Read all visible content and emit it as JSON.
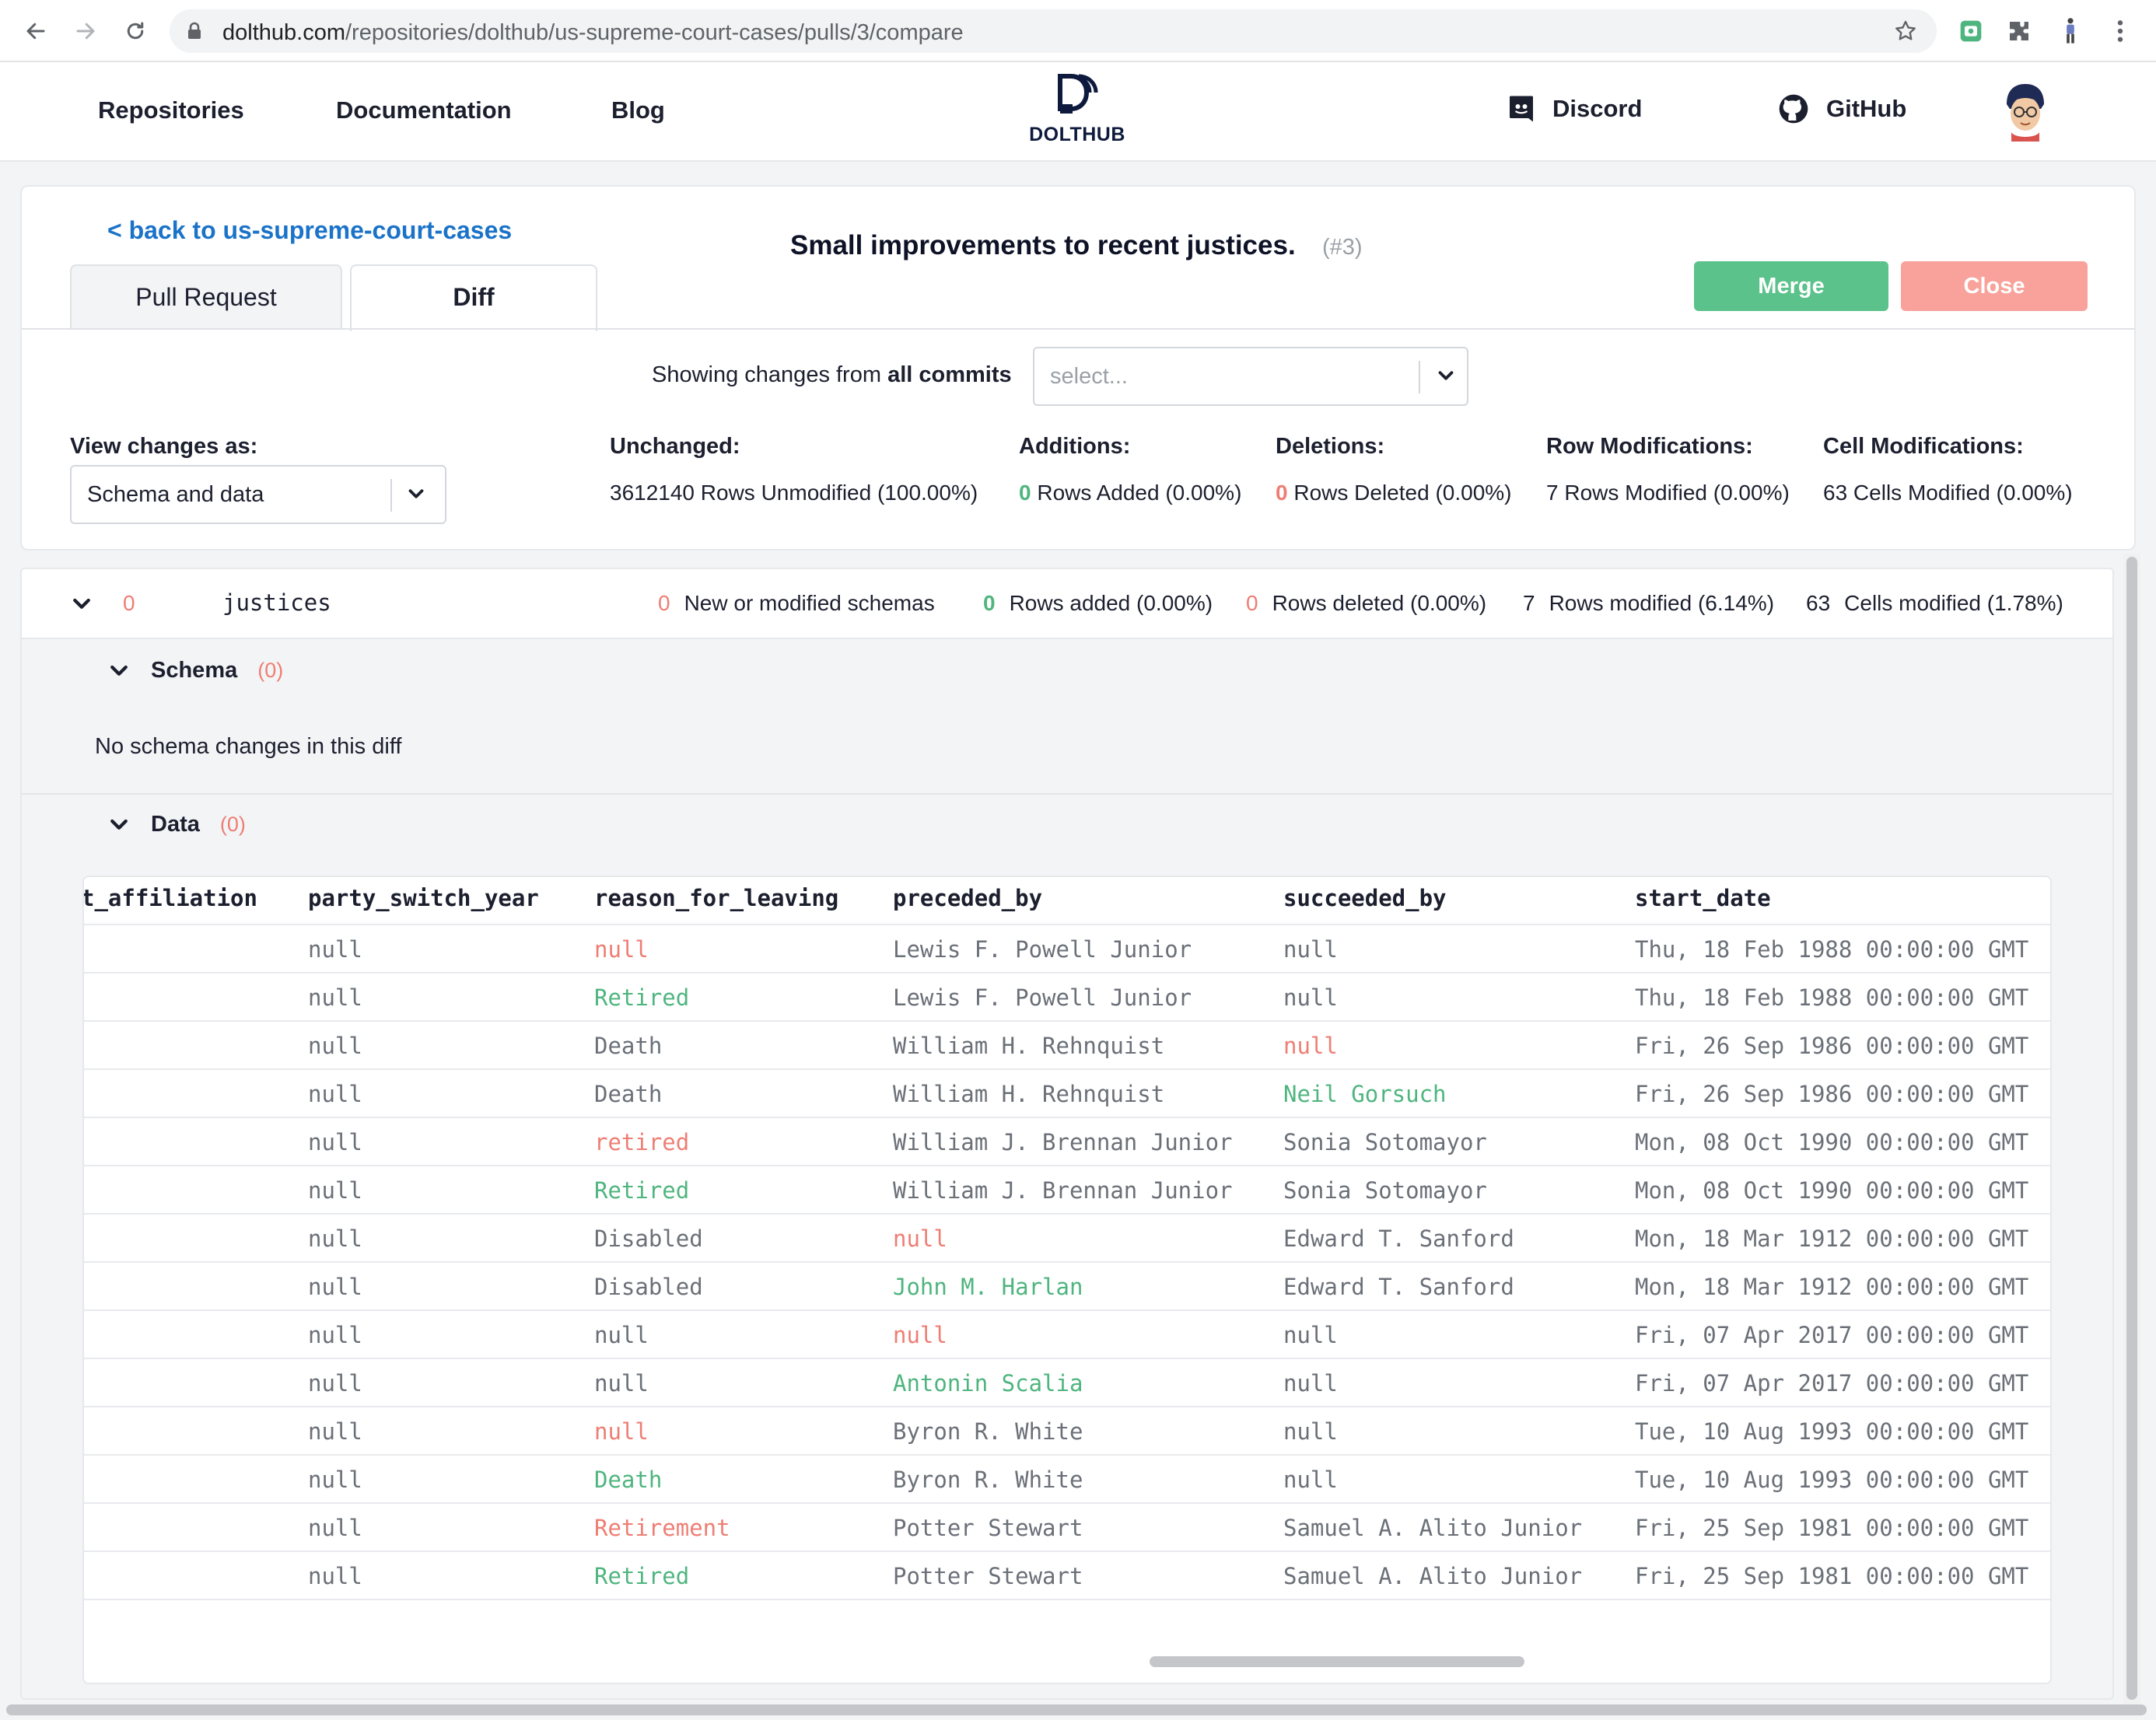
{
  "browser": {
    "url_host": "dolthub.com",
    "url_path": "/repositories/dolthub/us-supreme-court-cases/pulls/3/compare"
  },
  "header": {
    "nav": [
      "Repositories",
      "Documentation",
      "Blog"
    ],
    "logo_text": "DOLTHUB",
    "discord": "Discord",
    "github": "GitHub"
  },
  "pr": {
    "back_link": "< back to us-supreme-court-cases",
    "title": "Small improvements to recent justices.",
    "number": "(#3)",
    "tabs": [
      "Pull Request",
      "Diff"
    ],
    "merge": "Merge",
    "close": "Close",
    "showing_prefix": "Showing changes from ",
    "showing_bold": "all commits",
    "commit_placeholder": "select...",
    "view_label": "View changes as:",
    "view_value": "Schema and data",
    "stats": [
      {
        "head": "Unchanged:",
        "value": "3612140 Rows Unmodified (100.00%)",
        "zero": ""
      },
      {
        "head": "Additions:",
        "zero": "0",
        "value": " Rows Added (0.00%)"
      },
      {
        "head": "Deletions:",
        "zero": "0",
        "value": " Rows Deleted (0.00%)"
      },
      {
        "head": "Row Modifications:",
        "value": "7 Rows Modified (0.00%)",
        "zero": ""
      },
      {
        "head": "Cell Modifications:",
        "value": "63 Cells Modified (0.00%)",
        "zero": ""
      }
    ]
  },
  "table_diff": {
    "zero": "0",
    "name": "justices",
    "stats": [
      {
        "n": "0",
        "label": "New or modified schemas"
      },
      {
        "n": "0",
        "label": "Rows added (0.00%)"
      },
      {
        "n": "0",
        "label": "Rows deleted (0.00%)"
      },
      {
        "n": "7",
        "label": "Rows modified (6.14%)"
      },
      {
        "n": "63",
        "label": "Cells modified (1.78%)"
      }
    ],
    "schema_label": "Schema",
    "schema_count": "(0)",
    "no_schema": "No schema changes in this diff",
    "data_label": "Data",
    "data_count": "(0)",
    "columns": [
      "t_affiliation",
      "party_switch_year",
      "reason_for_leaving",
      "preceded_by",
      "succeeded_by",
      "start_date"
    ],
    "rows": [
      {
        "party_switch_year": "null",
        "reason": "null",
        "reason_s": "removed",
        "preceded": "Lewis F. Powell Junior",
        "preceded_s": "",
        "succeeded": "null",
        "succeeded_s": "",
        "start": "Thu, 18 Feb 1988 00:00:00 GMT"
      },
      {
        "party_switch_year": "null",
        "reason": "Retired",
        "reason_s": "added",
        "preceded": "Lewis F. Powell Junior",
        "preceded_s": "",
        "succeeded": "null",
        "succeeded_s": "",
        "start": "Thu, 18 Feb 1988 00:00:00 GMT"
      },
      {
        "party_switch_year": "null",
        "reason": "Death",
        "reason_s": "",
        "preceded": "William H. Rehnquist",
        "preceded_s": "",
        "succeeded": "null",
        "succeeded_s": "removed",
        "start": "Fri, 26 Sep 1986 00:00:00 GMT"
      },
      {
        "party_switch_year": "null",
        "reason": "Death",
        "reason_s": "",
        "preceded": "William H. Rehnquist",
        "preceded_s": "",
        "succeeded": "Neil Gorsuch",
        "succeeded_s": "added",
        "start": "Fri, 26 Sep 1986 00:00:00 GMT"
      },
      {
        "party_switch_year": "null",
        "reason": "retired",
        "reason_s": "removed",
        "preceded": "William J. Brennan Junior",
        "preceded_s": "",
        "succeeded": "Sonia Sotomayor",
        "succeeded_s": "",
        "start": "Mon, 08 Oct 1990 00:00:00 GMT"
      },
      {
        "party_switch_year": "null",
        "reason": "Retired",
        "reason_s": "added",
        "preceded": "William J. Brennan Junior",
        "preceded_s": "",
        "succeeded": "Sonia Sotomayor",
        "succeeded_s": "",
        "start": "Mon, 08 Oct 1990 00:00:00 GMT"
      },
      {
        "party_switch_year": "null",
        "reason": "Disabled",
        "reason_s": "",
        "preceded": "null",
        "preceded_s": "removed",
        "succeeded": "Edward T. Sanford",
        "succeeded_s": "",
        "start": "Mon, 18 Mar 1912 00:00:00 GMT"
      },
      {
        "party_switch_year": "null",
        "reason": "Disabled",
        "reason_s": "",
        "preceded": "John M. Harlan",
        "preceded_s": "added",
        "succeeded": "Edward T. Sanford",
        "succeeded_s": "",
        "start": "Mon, 18 Mar 1912 00:00:00 GMT"
      },
      {
        "party_switch_year": "null",
        "reason": "null",
        "reason_s": "",
        "preceded": "null",
        "preceded_s": "removed",
        "succeeded": "null",
        "succeeded_s": "",
        "start": "Fri, 07 Apr 2017 00:00:00 GMT"
      },
      {
        "party_switch_year": "null",
        "reason": "null",
        "reason_s": "",
        "preceded": "Antonin Scalia",
        "preceded_s": "added",
        "succeeded": "null",
        "succeeded_s": "",
        "start": "Fri, 07 Apr 2017 00:00:00 GMT"
      },
      {
        "party_switch_year": "null",
        "reason": "null",
        "reason_s": "removed",
        "preceded": "Byron R. White",
        "preceded_s": "",
        "succeeded": "null",
        "succeeded_s": "",
        "start": "Tue, 10 Aug 1993 00:00:00 GMT"
      },
      {
        "party_switch_year": "null",
        "reason": "Death",
        "reason_s": "added",
        "preceded": "Byron R. White",
        "preceded_s": "",
        "succeeded": "null",
        "succeeded_s": "",
        "start": "Tue, 10 Aug 1993 00:00:00 GMT"
      },
      {
        "party_switch_year": "null",
        "reason": "Retirement",
        "reason_s": "removed",
        "preceded": "Potter Stewart",
        "preceded_s": "",
        "succeeded": "Samuel A. Alito Junior",
        "succeeded_s": "",
        "start": "Fri, 25 Sep 1981 00:00:00 GMT"
      },
      {
        "party_switch_year": "null",
        "reason": "Retired",
        "reason_s": "added",
        "preceded": "Potter Stewart",
        "preceded_s": "",
        "succeeded": "Samuel A. Alito Junior",
        "succeeded_s": "",
        "start": "Fri, 25 Sep 1981 00:00:00 GMT"
      }
    ]
  },
  "colors": {
    "added": "#4fb57f",
    "removed": "#ee7e74",
    "link": "#1a73c8",
    "merge": "#5ac28a",
    "close": "#f8a29b"
  }
}
